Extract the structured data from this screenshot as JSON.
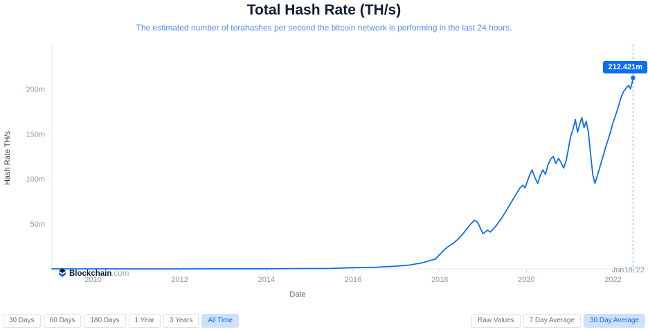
{
  "header": {
    "title": "Total Hash Rate (TH/s)",
    "subtitle": "The estimated number of terahashes per second the bitcoin network is performing in the last 24 hours."
  },
  "brand": {
    "name": "Blockchain",
    "suffix": ".com"
  },
  "chart_data": {
    "type": "line",
    "title": "Total Hash Rate (TH/s)",
    "xlabel": "Date",
    "ylabel": "Hash Rate TH/s",
    "grid": false,
    "legend": "none",
    "line_color": "#0c6cf2",
    "xlim": [
      2009.05,
      2022.55
    ],
    "ylim": [
      0,
      245
    ],
    "x_ticks": [
      2010,
      2012,
      2014,
      2016,
      2018,
      2020,
      2022
    ],
    "y_ticks": [
      {
        "value": 50,
        "label": "50m"
      },
      {
        "value": 100,
        "label": "100m"
      },
      {
        "value": 150,
        "label": "150m"
      },
      {
        "value": 200,
        "label": "200m"
      }
    ],
    "marker": {
      "x": 2022.46,
      "value": 212.421,
      "value_label": "212.421m",
      "label": "Jun18,'22"
    },
    "series": [
      {
        "name": "Total Hash Rate (TH/s), 30 Day Average",
        "units": "million TH/s",
        "points": [
          [
            2009.05,
            0
          ],
          [
            2010,
            0
          ],
          [
            2011,
            0
          ],
          [
            2012,
            0
          ],
          [
            2013,
            0.1
          ],
          [
            2014,
            0.1
          ],
          [
            2014.5,
            0.3
          ],
          [
            2015,
            0.4
          ],
          [
            2015.5,
            0.5
          ],
          [
            2016,
            1.3
          ],
          [
            2016.5,
            1.7
          ],
          [
            2017,
            3
          ],
          [
            2017.3,
            4.2
          ],
          [
            2017.6,
            6.8
          ],
          [
            2017.9,
            11
          ],
          [
            2018,
            16
          ],
          [
            2018.1,
            21
          ],
          [
            2018.2,
            25
          ],
          [
            2018.3,
            28
          ],
          [
            2018.4,
            32
          ],
          [
            2018.5,
            37
          ],
          [
            2018.6,
            43
          ],
          [
            2018.7,
            49
          ],
          [
            2018.8,
            54
          ],
          [
            2018.87,
            52
          ],
          [
            2018.93,
            46
          ],
          [
            2019,
            39
          ],
          [
            2019.05,
            41
          ],
          [
            2019.1,
            43
          ],
          [
            2019.17,
            41
          ],
          [
            2019.25,
            45
          ],
          [
            2019.35,
            51
          ],
          [
            2019.45,
            58
          ],
          [
            2019.55,
            66
          ],
          [
            2019.65,
            74
          ],
          [
            2019.75,
            82
          ],
          [
            2019.85,
            90
          ],
          [
            2019.92,
            93
          ],
          [
            2019.97,
            90
          ],
          [
            2020.02,
            97
          ],
          [
            2020.08,
            105
          ],
          [
            2020.13,
            110
          ],
          [
            2020.2,
            101
          ],
          [
            2020.26,
            95
          ],
          [
            2020.32,
            104
          ],
          [
            2020.38,
            110
          ],
          [
            2020.44,
            105
          ],
          [
            2020.5,
            116
          ],
          [
            2020.56,
            122
          ],
          [
            2020.62,
            125
          ],
          [
            2020.68,
            117
          ],
          [
            2020.74,
            123
          ],
          [
            2020.8,
            118
          ],
          [
            2020.86,
            112
          ],
          [
            2020.92,
            121
          ],
          [
            2020.97,
            134
          ],
          [
            2021.02,
            147
          ],
          [
            2021.08,
            156
          ],
          [
            2021.13,
            166
          ],
          [
            2021.18,
            152
          ],
          [
            2021.23,
            161
          ],
          [
            2021.28,
            168
          ],
          [
            2021.33,
            157
          ],
          [
            2021.38,
            164
          ],
          [
            2021.43,
            152
          ],
          [
            2021.48,
            128
          ],
          [
            2021.53,
            105
          ],
          [
            2021.58,
            95
          ],
          [
            2021.64,
            104
          ],
          [
            2021.7,
            114
          ],
          [
            2021.76,
            124
          ],
          [
            2021.82,
            134
          ],
          [
            2021.88,
            143
          ],
          [
            2021.94,
            152
          ],
          [
            2022,
            163
          ],
          [
            2022.06,
            171
          ],
          [
            2022.12,
            180
          ],
          [
            2022.18,
            190
          ],
          [
            2022.24,
            197
          ],
          [
            2022.3,
            201
          ],
          [
            2022.36,
            204
          ],
          [
            2022.4,
            200
          ],
          [
            2022.44,
            207
          ],
          [
            2022.46,
            212.4
          ]
        ]
      }
    ]
  },
  "controls": {
    "range_buttons": [
      {
        "label": "30 Days",
        "selected": false
      },
      {
        "label": "60 Days",
        "selected": false
      },
      {
        "label": "180 Days",
        "selected": false
      },
      {
        "label": "1 Year",
        "selected": false
      },
      {
        "label": "3 Years",
        "selected": false
      },
      {
        "label": "All Time",
        "selected": true
      }
    ],
    "aggregation_buttons": [
      {
        "label": "Raw Values",
        "selected": false
      },
      {
        "label": "7 Day Average",
        "selected": false
      },
      {
        "label": "30 Day Average",
        "selected": true
      }
    ]
  },
  "colors": {
    "accent": "#0c6cf2",
    "title": "#121d33",
    "subtitle": "#4c8af8",
    "axis_text": "#8c97a7",
    "axis_line": "#e3e7ee",
    "selected_button_bg": "#cfe0fb"
  }
}
